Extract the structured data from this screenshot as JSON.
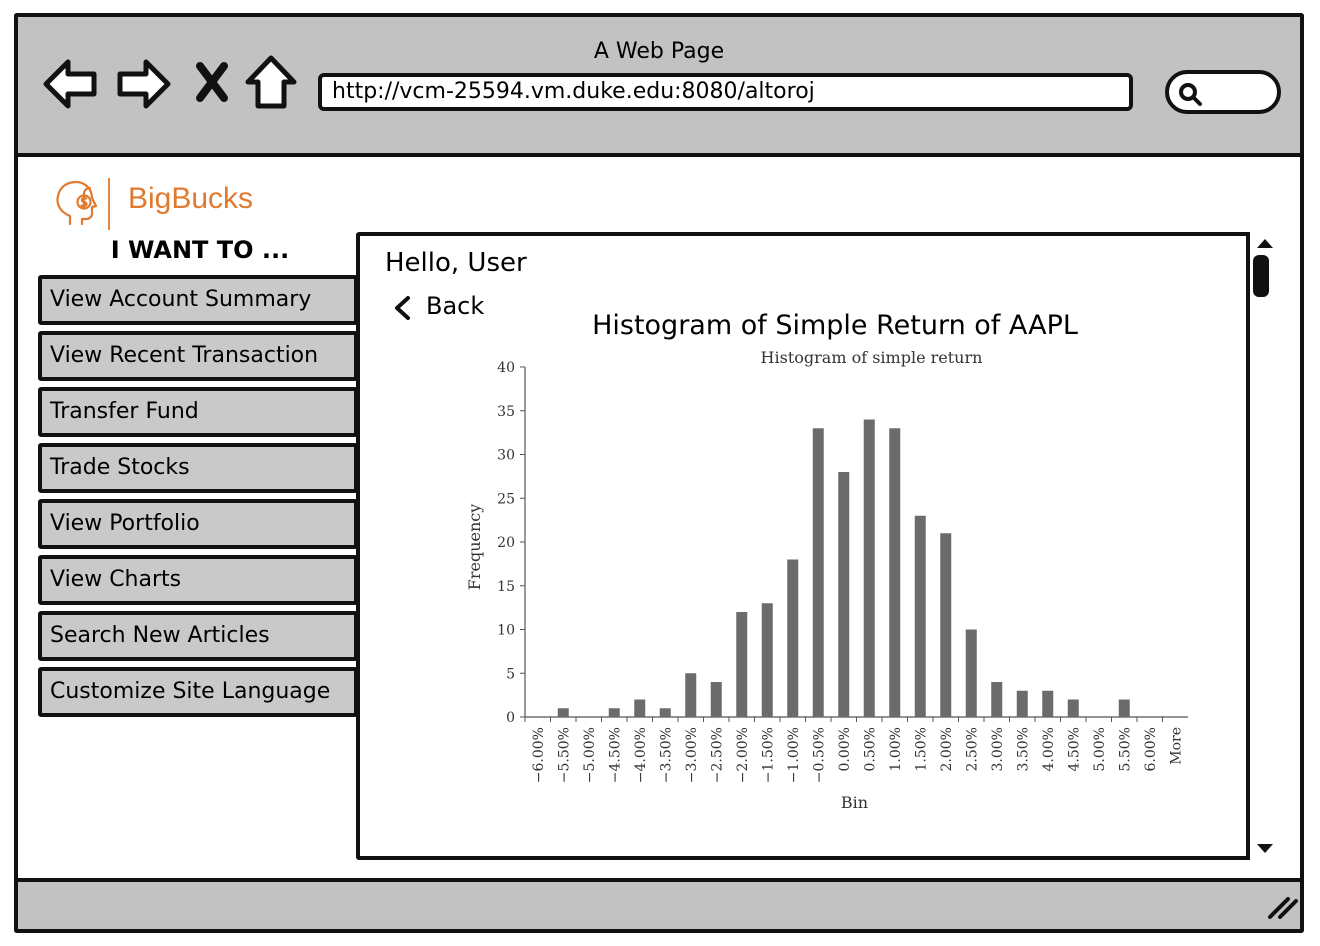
{
  "browser": {
    "window_title": "A Web Page",
    "url": "http://vcm-25594.vm.duke.edu:8080/altoroj",
    "nav_icons": [
      "back-arrow-icon",
      "forward-arrow-icon",
      "stop-icon",
      "home-icon"
    ],
    "search_icon": "search-icon"
  },
  "brand": {
    "name": "BigBucks",
    "color": "#e07a2e"
  },
  "sidebar": {
    "heading": "I WANT TO ...",
    "items": [
      {
        "label": "View Account Summary"
      },
      {
        "label": "View Recent Transaction"
      },
      {
        "label": "Transfer Fund"
      },
      {
        "label": "Trade Stocks"
      },
      {
        "label": "View Portfolio"
      },
      {
        "label": "View Charts"
      },
      {
        "label": "Search New Articles"
      },
      {
        "label": "Customize Site Language"
      }
    ]
  },
  "main": {
    "greeting": "Hello, User",
    "back_label": "Back",
    "chart_heading": "Histogram of Simple Return of AAPL"
  },
  "chart_data": {
    "type": "bar",
    "title": "Histogram of simple return",
    "xlabel": "Bin",
    "ylabel": "Frequency",
    "ylim": [
      0,
      40
    ],
    "yticks": [
      0,
      5,
      10,
      15,
      20,
      25,
      30,
      35,
      40
    ],
    "categories": [
      "−6.00%",
      "−5.50%",
      "−5.00%",
      "−4.50%",
      "−4.00%",
      "−3.50%",
      "−3.00%",
      "−2.50%",
      "−2.00%",
      "−1.50%",
      "−1.00%",
      "−0.50%",
      "0.00%",
      "0.50%",
      "1.00%",
      "1.50%",
      "2.00%",
      "2.50%",
      "3.00%",
      "3.50%",
      "4.00%",
      "4.50%",
      "5.00%",
      "5.50%",
      "6.00%",
      "More"
    ],
    "values": [
      0,
      1,
      0,
      1,
      2,
      1,
      5,
      4,
      12,
      13,
      18,
      33,
      28,
      34,
      33,
      23,
      21,
      10,
      4,
      3,
      3,
      2,
      0,
      2,
      0,
      0
    ],
    "bar_color": "#6b6b6b",
    "grid": false,
    "legend": "none"
  }
}
